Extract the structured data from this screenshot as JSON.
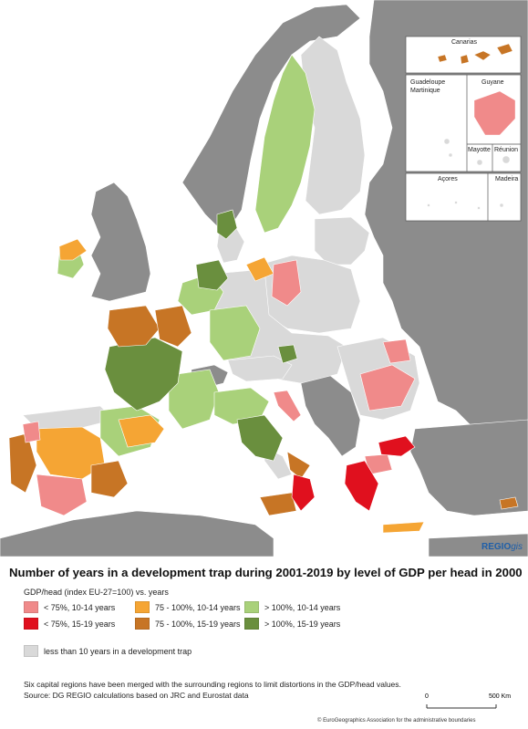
{
  "map": {
    "brand_bold": "REGIO",
    "brand_italic": "gis",
    "insets": [
      "Canarias",
      "Guadeloupe",
      "Martinique",
      "Guyane",
      "Mayotte",
      "Réunion",
      "Açores",
      "Madeira"
    ]
  },
  "title": "Number of years in a development trap during 2001-2019 by level of GDP per head in 2000",
  "subtitle": "GDP/head (index EU-27=100) vs. years",
  "legend": [
    {
      "label": "< 75%, 10-14 years",
      "color": "#f08a8a"
    },
    {
      "label": "75 - 100%, 10-14 years",
      "color": "#f5a534"
    },
    {
      "label": "> 100%, 10-14 years",
      "color": "#a9d17a"
    },
    {
      "label": "< 75%, 15-19 years",
      "color": "#e0101e"
    },
    {
      "label": "75 - 100%, 15-19 years",
      "color": "#c77525"
    },
    {
      "label": "> 100%, 15-19 years",
      "color": "#6a8f3e"
    }
  ],
  "legend_other": {
    "label": "less than 10 years in a development trap",
    "color": "#d9d9d9"
  },
  "notes": [
    "Six capital regions have been merged with the surrounding regions to limit distortions in the GDP/head values.",
    "Source: DG REGIO calculations based on JRC and Eurostat data"
  ],
  "scale": {
    "start": "0",
    "end": "500 Km"
  },
  "copyright": "© EuroGeographics Association for the administrative boundaries",
  "colors": {
    "sea": "#ffffff",
    "non_eu": "#8c8c8c",
    "eu_low": "#d9d9d9"
  }
}
